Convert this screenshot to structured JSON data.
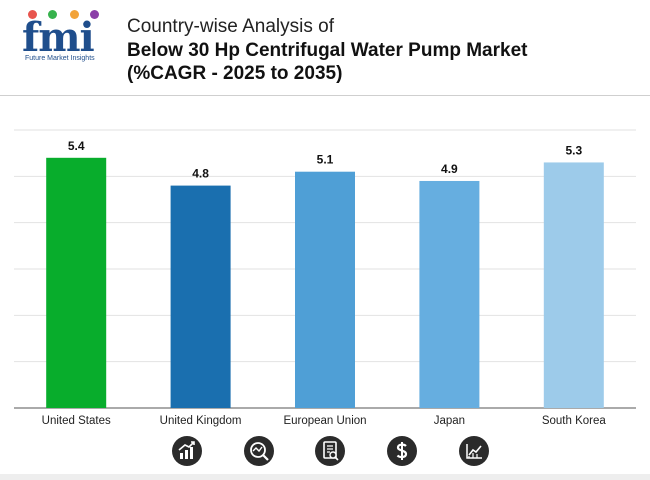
{
  "brand": {
    "logo_text": "fmi",
    "tagline": "Future Market Insights",
    "dot_colors": [
      "#e8554e",
      "#37b24d",
      "#f2a33a",
      "#8b3fa8"
    ]
  },
  "title": {
    "line1": "Country-wise Analysis of",
    "line2": "Below 30 Hp Centrifugal Water Pump Market",
    "line3": "(%CAGR - 2025 to 2035)"
  },
  "chart_data": {
    "type": "bar",
    "title": "Below 30 Hp Centrifugal Water Pump Market (%CAGR - 2025 to 2035)",
    "categories": [
      "United States",
      "United Kingdom",
      "European Union",
      "Japan",
      "South Korea"
    ],
    "values": [
      5.4,
      4.8,
      5.1,
      4.9,
      5.3
    ],
    "value_labels": [
      "5.4",
      "4.8",
      "5.1",
      "4.9",
      "5.3"
    ],
    "colors": [
      "#08ad2c",
      "#1a6faf",
      "#4f9fd6",
      "#66aee0",
      "#9dcbea"
    ],
    "ylim": [
      0,
      6
    ],
    "grid": true,
    "xlabel": "",
    "ylabel": ""
  },
  "icons": [
    "growth-chart-icon",
    "magnifier-graph-icon",
    "document-search-icon",
    "dollar-icon",
    "line-chart-icon"
  ]
}
